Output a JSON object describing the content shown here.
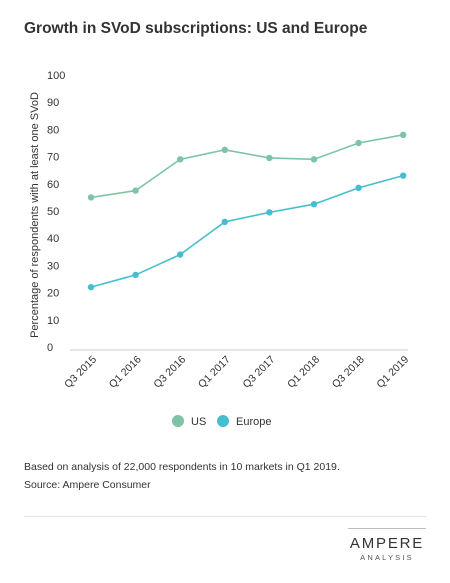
{
  "chart_data": {
    "type": "line",
    "title": "Growth in SVoD subscriptions: US and Europe",
    "xlabel": "",
    "ylabel": "Percentage of respondents with at least one SVoD",
    "categories": [
      "Q3 2015",
      "Q1 2016",
      "Q3 2016",
      "Q1 2017",
      "Q3 2017",
      "Q1 2018",
      "Q3 2018",
      "Q1 2019"
    ],
    "ylim": [
      0,
      100
    ],
    "yticks": [
      0,
      10,
      20,
      30,
      40,
      50,
      60,
      70,
      80,
      90,
      100
    ],
    "grid": false,
    "legend_position": "bottom-center",
    "series": [
      {
        "name": "US",
        "color": "#7dc4a6",
        "values": [
          55,
          57.5,
          69,
          72.5,
          69.5,
          69,
          75,
          78
        ]
      },
      {
        "name": "Europe",
        "color": "#47bdd0",
        "values": [
          22,
          26.5,
          34,
          46,
          49.5,
          52.5,
          58.5,
          63
        ]
      }
    ]
  },
  "footer": {
    "note": "Based on analysis of 22,000 respondents in 10 markets in Q1 2019.",
    "source": "Source: Ampere Consumer"
  },
  "logo": {
    "main": "AMPERE",
    "sub": "ANALYSIS"
  }
}
